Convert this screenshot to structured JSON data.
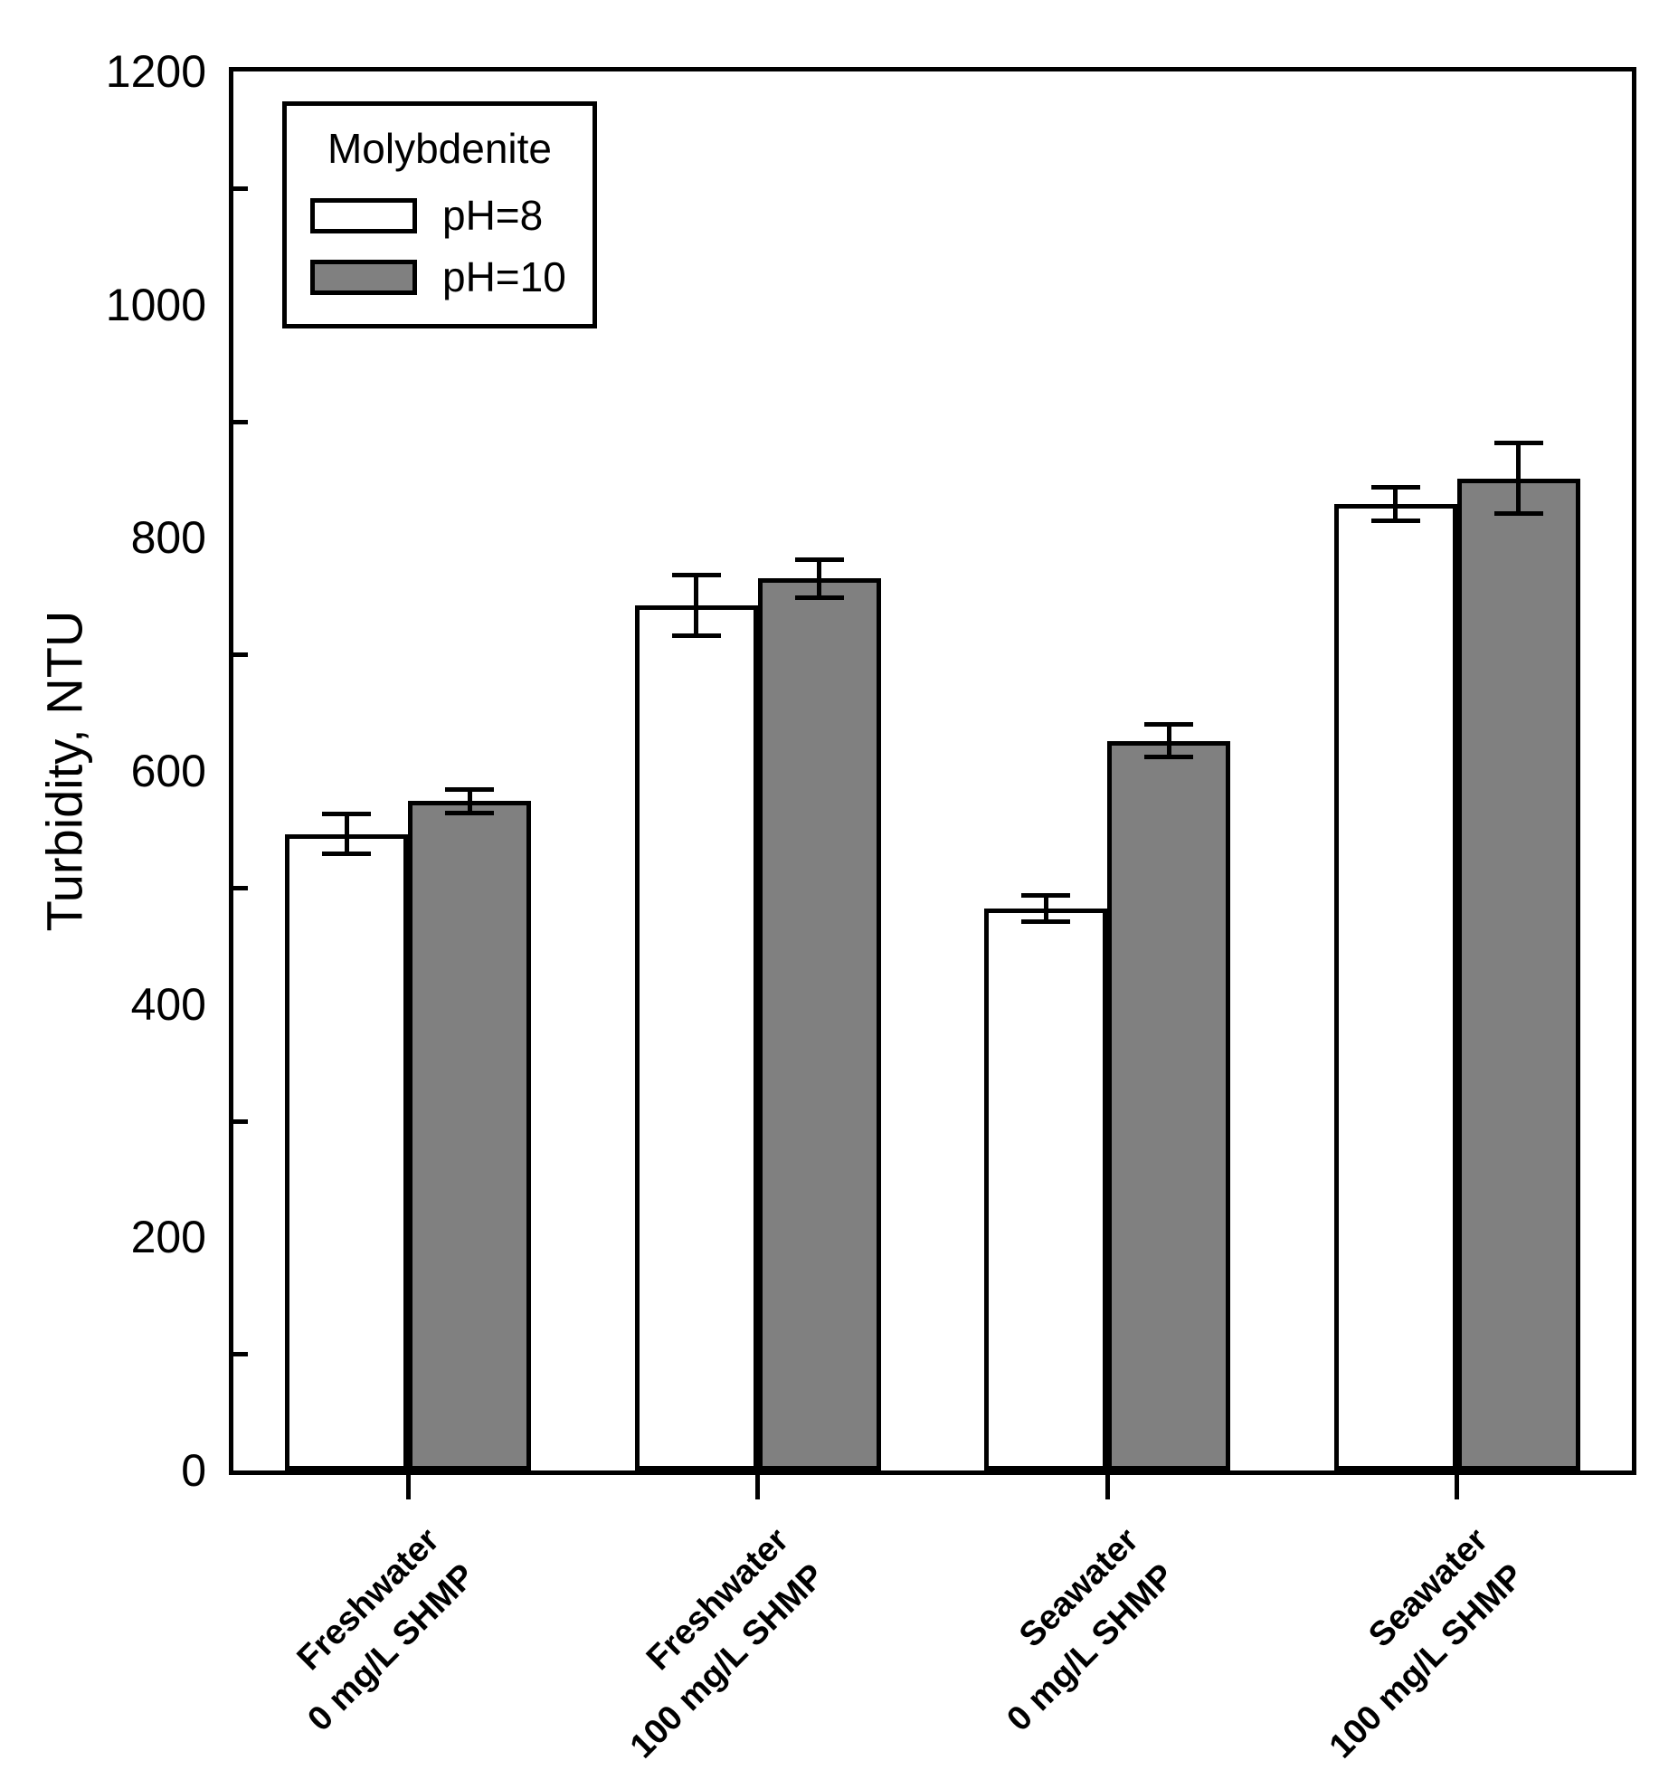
{
  "chart_data": {
    "type": "bar",
    "title": "",
    "xlabel": "",
    "ylabel": "Turbidity, NTU",
    "ylim": [
      0,
      1200
    ],
    "yticks": [
      0,
      200,
      400,
      600,
      800,
      1000,
      1200
    ],
    "yticks_minor": [
      100,
      300,
      500,
      700,
      900,
      1100
    ],
    "grid": false,
    "categories": [
      [
        "Freshwater",
        "0 mg/L SHMP"
      ],
      [
        "Freshwater",
        "100 mg/L SHMP"
      ],
      [
        "Seawater",
        "0 mg/L SHMP"
      ],
      [
        "Seawater",
        "100 mg/L SHMP"
      ]
    ],
    "series": [
      {
        "name": "pH=8",
        "fill": "#ffffff",
        "values": [
          546,
          742,
          482,
          829
        ],
        "errors": [
          17,
          26,
          11,
          14
        ]
      },
      {
        "name": "pH=10",
        "fill": "#808080",
        "values": [
          574,
          765,
          626,
          851
        ],
        "errors": [
          10,
          16,
          14,
          30
        ]
      }
    ],
    "error_bars": "plus-minus, capped",
    "legend": {
      "title": "Molybdenite",
      "position": "top-left"
    },
    "colors": {
      "axis": "#000000",
      "background": "#ffffff",
      "bar_outline": "#000000"
    }
  }
}
